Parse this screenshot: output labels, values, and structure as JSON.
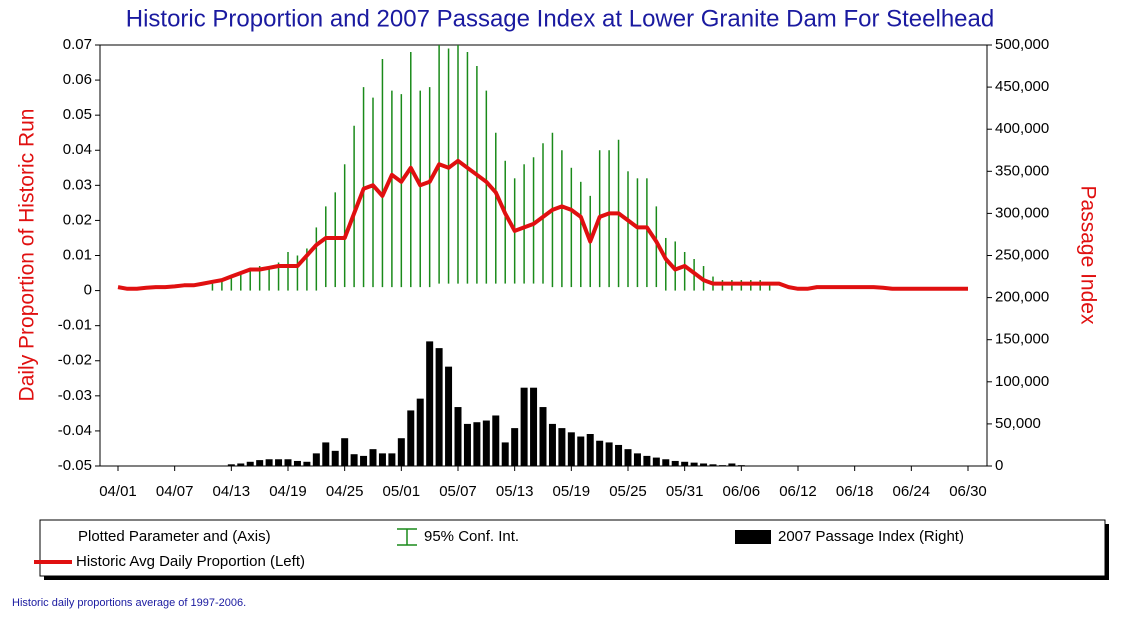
{
  "chart_data": {
    "type": "combo",
    "title": "Historic Proportion and 2007 Passage Index at Lower Granite Dam  For Steelhead",
    "y_label": "Daily Proportion of Historic Run",
    "y2_label": "Passage Index",
    "categories": [
      "04/01",
      null,
      null,
      null,
      null,
      null,
      "04/07",
      null,
      null,
      null,
      null,
      null,
      "04/13",
      null,
      null,
      null,
      null,
      null,
      "04/19",
      null,
      null,
      null,
      null,
      null,
      "04/25",
      null,
      null,
      null,
      null,
      null,
      "05/01",
      null,
      null,
      null,
      null,
      null,
      "05/07",
      null,
      null,
      null,
      null,
      null,
      "05/13",
      null,
      null,
      null,
      null,
      null,
      "05/19",
      null,
      null,
      null,
      null,
      null,
      "05/25",
      null,
      null,
      null,
      null,
      null,
      "05/31",
      null,
      null,
      null,
      null,
      null,
      "06/06",
      null,
      null,
      null,
      null,
      null,
      "06/12",
      null,
      null,
      null,
      null,
      null,
      "06/18",
      null,
      null,
      null,
      null,
      null,
      "06/24",
      null,
      null,
      null,
      null,
      null,
      "06/30"
    ],
    "ylim": [
      -0.05,
      0.07
    ],
    "yticks": [
      -0.05,
      -0.04,
      -0.03,
      -0.02,
      -0.01,
      0,
      0.01,
      0.02,
      0.03,
      0.04,
      0.05,
      0.06,
      0.07
    ],
    "y2lim": [
      0,
      500000
    ],
    "y2ticks": [
      0,
      {
        "value": 50000,
        "label": "50,000"
      },
      {
        "value": 100000,
        "label": "100,000"
      },
      {
        "value": 150000,
        "label": "150,000"
      },
      {
        "value": 200000,
        "label": "200,000"
      },
      {
        "value": 250000,
        "label": "250,000"
      },
      {
        "value": 300000,
        "label": "300,000"
      },
      {
        "value": 350000,
        "label": "350,000"
      },
      {
        "value": 400000,
        "label": "400,000"
      },
      {
        "value": 450000,
        "label": "450,000"
      },
      {
        "value": 500000,
        "label": "500,000"
      }
    ],
    "legend_header": "Plotted Parameter and (Axis)",
    "series": [
      {
        "name": "2007 Passage Index (Right)",
        "type": "bar",
        "axis": "y2",
        "color": "#000000",
        "values": [
          0,
          0,
          0,
          0,
          0,
          0,
          0,
          0,
          0,
          0,
          0,
          0,
          2000,
          3000,
          5000,
          7000,
          8000,
          8000,
          8000,
          6000,
          5000,
          15000,
          28000,
          18000,
          33000,
          14000,
          12000,
          20000,
          15000,
          15000,
          33000,
          66000,
          80000,
          148000,
          140000,
          118000,
          70000,
          50000,
          52000,
          54000,
          60000,
          28000,
          45000,
          93000,
          93000,
          70000,
          50000,
          45000,
          40000,
          35000,
          38000,
          30000,
          28000,
          25000,
          20000,
          15000,
          12000,
          10000,
          8000,
          6000,
          5000,
          4000,
          3000,
          2000,
          1000,
          3000,
          1000,
          0,
          0,
          0,
          0,
          0,
          0,
          0,
          0,
          0,
          0,
          0,
          0,
          0,
          0,
          0,
          0,
          0,
          0,
          0,
          0,
          0,
          0,
          0,
          0
        ]
      },
      {
        "name": "95% Conf. Int.",
        "type": "errorbar",
        "color": "#1a8a1a",
        "low": [
          null,
          null,
          null,
          null,
          null,
          null,
          null,
          null,
          null,
          null,
          0,
          0,
          0,
          0,
          0,
          0,
          0,
          0,
          0,
          0,
          0,
          0,
          0.001,
          0.001,
          0.001,
          0.001,
          0.001,
          0.001,
          0.001,
          0.001,
          0.001,
          0.001,
          0.001,
          0.001,
          0.002,
          0.002,
          0.002,
          0.002,
          0.002,
          0.002,
          0.002,
          0.002,
          0.002,
          0.002,
          0.002,
          0.002,
          0.001,
          0.001,
          0.001,
          0.001,
          0.001,
          0.001,
          0.001,
          0.001,
          0.001,
          0.001,
          0.001,
          0.001,
          0,
          0,
          0,
          0,
          0,
          0,
          0,
          0,
          0,
          0,
          0,
          0,
          null,
          null,
          null,
          null,
          null,
          null,
          null,
          null,
          null,
          null,
          null,
          null,
          null,
          null,
          null,
          null,
          null,
          null,
          null,
          null,
          null
        ],
        "high": [
          null,
          null,
          null,
          null,
          null,
          null,
          null,
          null,
          null,
          null,
          0.002,
          0.003,
          0.004,
          0.005,
          0.006,
          0.007,
          0.007,
          0.008,
          0.011,
          0.01,
          0.012,
          0.018,
          0.024,
          0.028,
          0.036,
          0.047,
          0.058,
          0.055,
          0.066,
          0.057,
          0.056,
          0.068,
          0.057,
          0.058,
          0.07,
          0.069,
          0.07,
          0.068,
          0.064,
          0.057,
          0.045,
          0.037,
          0.032,
          0.036,
          0.038,
          0.042,
          0.045,
          0.04,
          0.035,
          0.031,
          0.027,
          0.04,
          0.04,
          0.043,
          0.034,
          0.032,
          0.032,
          0.024,
          0.015,
          0.014,
          0.011,
          0.009,
          0.007,
          0.004,
          0.003,
          0.003,
          0.003,
          0.003,
          0.003,
          0.002,
          null,
          null,
          null,
          null,
          null,
          null,
          null,
          null,
          null,
          null,
          null,
          null,
          null,
          null,
          null,
          null,
          null,
          null,
          null,
          null,
          null
        ]
      },
      {
        "name": "Historic Avg Daily Proportion (Left)",
        "type": "line",
        "color": "#e01010",
        "values": [
          0.001,
          0.0005,
          0.0005,
          0.0008,
          0.001,
          0.001,
          0.0012,
          0.0015,
          0.0015,
          0.002,
          0.0025,
          0.003,
          0.004,
          0.005,
          0.006,
          0.006,
          0.0065,
          0.007,
          0.007,
          0.007,
          0.01,
          0.013,
          0.015,
          0.015,
          0.015,
          0.022,
          0.029,
          0.03,
          0.027,
          0.033,
          0.031,
          0.035,
          0.03,
          0.031,
          0.036,
          0.035,
          0.037,
          0.035,
          0.033,
          0.031,
          0.028,
          0.022,
          0.017,
          0.018,
          0.019,
          0.021,
          0.023,
          0.024,
          0.023,
          0.021,
          0.014,
          0.021,
          0.022,
          0.022,
          0.02,
          0.018,
          0.018,
          0.014,
          0.009,
          0.006,
          0.007,
          0.005,
          0.003,
          0.002,
          0.002,
          0.002,
          0.002,
          0.002,
          0.002,
          0.002,
          0.002,
          0.001,
          0.0005,
          0.0005,
          0.001,
          0.001,
          0.001,
          0.001,
          0.001,
          0.001,
          0.001,
          0.0008,
          0.0005,
          0.0005,
          0.0005,
          0.0005,
          0.0005,
          0.0005,
          0.0005,
          0.0005,
          0.0005
        ]
      }
    ],
    "footnote": "Historic daily proportions average of 1997-2006."
  }
}
